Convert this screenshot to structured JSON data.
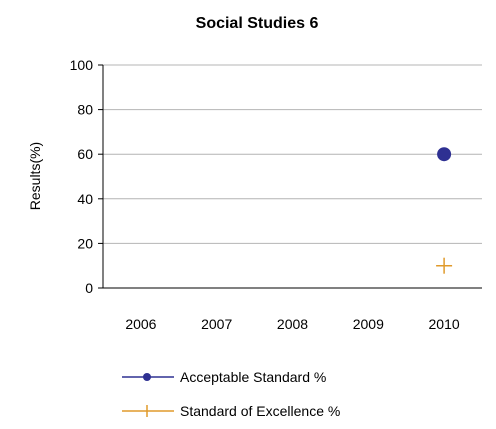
{
  "chart_data": {
    "type": "line",
    "title": "Social Studies 6",
    "xlabel": "",
    "ylabel": "Results(%)",
    "categories": [
      "2006",
      "2007",
      "2008",
      "2009",
      "2010"
    ],
    "ylim": [
      0,
      100
    ],
    "yticks": [
      0,
      20,
      40,
      60,
      80,
      100
    ],
    "grid": true,
    "legend": "bottom",
    "series": [
      {
        "name": "Acceptable Standard %",
        "values": [
          null,
          null,
          null,
          null,
          60
        ],
        "color": "#2E3092",
        "marker": "circle"
      },
      {
        "name": "Standard of Excellence %",
        "values": [
          null,
          null,
          null,
          null,
          10
        ],
        "color": "#E09A2B",
        "marker": "plus"
      }
    ]
  }
}
